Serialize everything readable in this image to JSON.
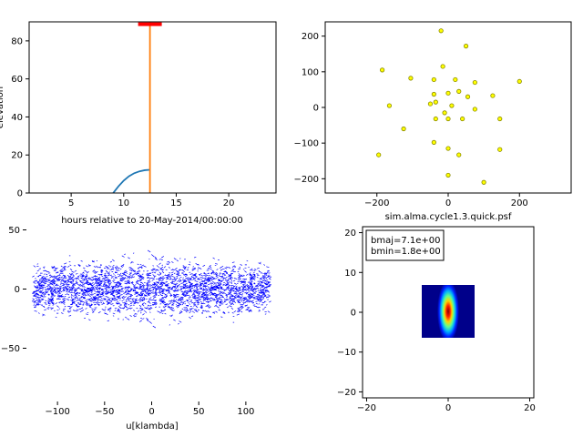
{
  "chart_data": [
    {
      "type": "line",
      "xlabel": "hours relative to 20-May-2014/00:00:00",
      "ylabel": "elevation",
      "xlim": [
        1,
        24.5
      ],
      "ylim": [
        0,
        90
      ],
      "xticks": [
        "5",
        "10",
        "15",
        "20"
      ],
      "yticks": [
        "0",
        "20",
        "40",
        "60",
        "80"
      ],
      "series": [
        {
          "color": "#1f77b4",
          "x": [
            9.0,
            9.5,
            10.0,
            10.5,
            11.0,
            11.5,
            12.0,
            12.5
          ],
          "y": [
            0,
            3.5,
            6.5,
            8.8,
            10.4,
            11.4,
            12.0,
            12.2
          ]
        }
      ],
      "vertical_line": {
        "x": 12.5,
        "color": "#ff7f0e"
      },
      "marker": {
        "x": 12.5,
        "y": 89,
        "color": "#ff0000"
      }
    },
    {
      "type": "scatter",
      "title": "sim.alma.cycle1.3.quick.psf",
      "xlim": [
        -345,
        345
      ],
      "ylim": [
        -240,
        240
      ],
      "xticks": [
        "-200",
        "0",
        "200"
      ],
      "yticks": [
        "-200",
        "-100",
        "0",
        "100",
        "200"
      ],
      "point_color": "#ffff00",
      "edge_color": "#8a8a00",
      "x": [
        -20,
        50,
        -185,
        -15,
        -105,
        -40,
        20,
        75,
        200,
        -165,
        -40,
        0,
        -50,
        30,
        55,
        125,
        -35,
        10,
        75,
        -10,
        -35,
        0,
        40,
        145,
        -125,
        -40,
        0,
        145,
        30,
        -195,
        0,
        100
      ],
      "y": [
        215,
        172,
        105,
        115,
        82,
        78,
        78,
        70,
        73,
        5,
        37,
        40,
        10,
        45,
        30,
        33,
        15,
        5,
        -5,
        -15,
        -32,
        -32,
        -32,
        -32,
        -60,
        -98,
        -115,
        -118,
        -133,
        -133,
        -190,
        -210
      ]
    },
    {
      "type": "scatter",
      "xlabel": "u[klambda]",
      "xlim": [
        -133,
        133
      ],
      "ylim": [
        -95,
        55
      ],
      "xticks": [
        "-100",
        "-50",
        "0",
        "50",
        "100"
      ],
      "yticks": [
        "-50",
        "0",
        "50"
      ],
      "point_color": "#0000ff",
      "note": "uv coverage: dense elliptical band of short tracks"
    },
    {
      "type": "heatmap",
      "xlim": [
        -21,
        21
      ],
      "ylim": [
        -21.5,
        21.5
      ],
      "xticks": [
        "-20",
        "0",
        "20"
      ],
      "yticks": [
        "-20",
        "-10",
        "0",
        "10",
        "20"
      ],
      "extent": [
        -6.5,
        6.5,
        -6.5,
        6.5
      ],
      "legend_lines": [
        "bmaj=7.1e+00",
        "bmin=1.8e+00"
      ]
    }
  ]
}
